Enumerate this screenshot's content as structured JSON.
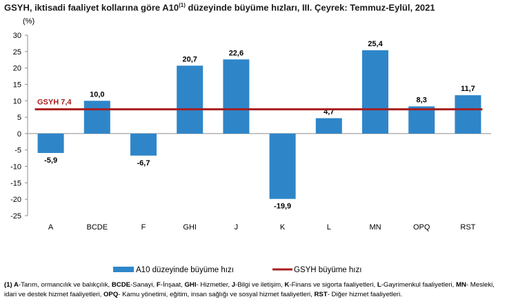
{
  "title": {
    "main": "GSYH, iktisadi faaliyet kollarına göre A10",
    "sup": "(1)",
    "rest": " düzeyinde büyüme hızları, III. Çeyrek: Temmuz-Eylül, 2021"
  },
  "chart_data": {
    "type": "bar",
    "unit_label": "(%)",
    "categories": [
      "A",
      "BCDE",
      "F",
      "GHI",
      "J",
      "K",
      "L",
      "MN",
      "OPQ",
      "RST"
    ],
    "series": [
      {
        "name": "A10 düzeyinde büyüme hızı",
        "values": [
          -5.9,
          10.0,
          -6.7,
          20.7,
          22.6,
          -19.9,
          4.7,
          25.4,
          8.3,
          11.7
        ],
        "labels": [
          "-5,9",
          "10,0",
          "-6,7",
          "20,7",
          "22,6",
          "-19,9",
          "4,7",
          "25,4",
          "8,3",
          "11,7"
        ],
        "color": "#2e86c9"
      }
    ],
    "reference_line": {
      "name": "GSYH büyüme hızı",
      "value": 7.4,
      "label_prefix": "GSYH",
      "label_value": "7,4",
      "color": "#a81d1d"
    },
    "ylim": [
      -25,
      30
    ],
    "yticks": [
      30,
      25,
      20,
      15,
      10,
      5,
      0,
      -5,
      -10,
      -15,
      -20,
      -25
    ],
    "grid": false,
    "legend_position": "bottom"
  },
  "footnote": {
    "items": [
      {
        "key": "(1) A",
        "text": "-Tarım, ormancılık ve balıkçılık, "
      },
      {
        "key": "BCDE",
        "text": "-Sanayi, "
      },
      {
        "key": "F",
        "text": "-İnşaat, "
      },
      {
        "key": "GHI",
        "text": "- Hizmetler, "
      },
      {
        "key": "J",
        "text": "-Bilgi ve iletişim, "
      },
      {
        "key": "K",
        "text": "-Finans ve sigorta faaliyetleri, "
      },
      {
        "key": "L",
        "text": "-Gayrimenkul faaliyetleri, "
      },
      {
        "key": "MN",
        "text": "- Mesleki, idari ve destek hizmet faaliyetleri, "
      },
      {
        "key": "OPQ",
        "text": "- Kamu yönetimi, eğitim, insan sağlığı ve sosyal hizmet faaliyetleri, "
      },
      {
        "key": "RST",
        "text": "- Diğer hizmet faaliyetleri."
      }
    ]
  }
}
